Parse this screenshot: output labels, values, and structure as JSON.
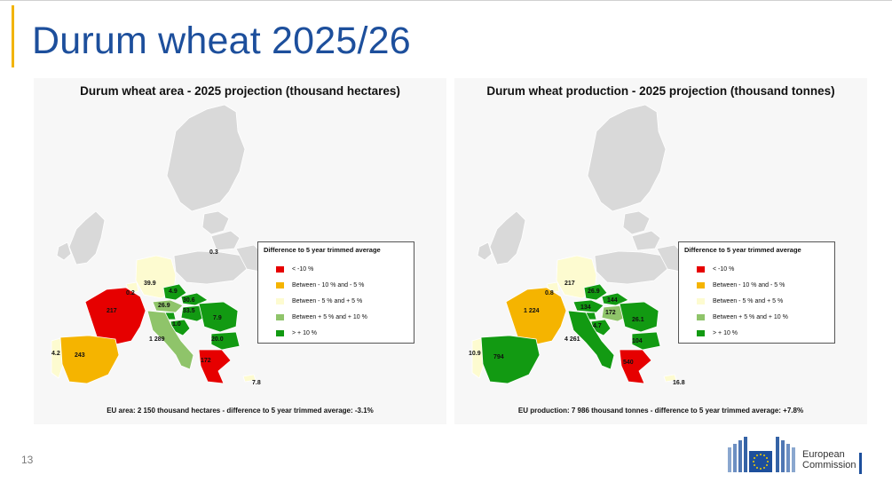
{
  "slide": {
    "title": "Durum wheat 2025/26",
    "page_number": "13"
  },
  "legend": {
    "title": "Difference to 5 year trimmed average",
    "items": [
      {
        "label": "< -10 %",
        "color": "#e60000"
      },
      {
        "label": "Between - 10 % and - 5 %",
        "color": "#f5b400"
      },
      {
        "label": "Between - 5 % and + 5 %",
        "color": "#fdfbd0"
      },
      {
        "label": "Between + 5 % and + 10 %",
        "color": "#8fc46a"
      },
      {
        "label": "> + 10 %",
        "color": "#129a12"
      }
    ]
  },
  "maps": [
    {
      "title": "Durum wheat area - 2025 projection  (thousand hectares)",
      "footnote": "EU area: 2 150 thousand hectares - difference to 5 year trimmed average: -3.1%",
      "labels": {
        "france": "217",
        "spain": "243",
        "portugal": "4.2",
        "italy": "1 289",
        "germany": "39.9",
        "belgium": "0.2",
        "poland": "0.3",
        "czech": "4.9",
        "slovakia": "30.6",
        "austria": "26.9",
        "hungary": "33.5",
        "croatia": "1.0",
        "romania": "7.9",
        "bulgaria": "20.0",
        "greece": "172",
        "cyprus": "7.8"
      },
      "colors": {
        "france": "#e60000",
        "spain": "#f5b400",
        "portugal": "#fdfbd0",
        "italy": "#8fc46a",
        "germany": "#fdfbd0",
        "belgium": "#fdfbd0",
        "czech": "#129a12",
        "slovakia": "#129a12",
        "austria": "#8fc46a",
        "hungary": "#129a12",
        "croatia": "#129a12",
        "slovenia": "#129a12",
        "romania": "#129a12",
        "bulgaria": "#129a12",
        "greece": "#e60000",
        "cyprus": "#fdfbd0"
      }
    },
    {
      "title": "Durum wheat production - 2025 projection  (thousand tonnes)",
      "footnote": "EU production: 7 986 thousand tonnes - difference to 5 year trimmed average: +7.8%",
      "labels": {
        "france": "1 224",
        "spain": "794",
        "portugal": "10.9",
        "italy": "4 261",
        "germany": "217",
        "belgium": "0.8",
        "czech": "26.9",
        "slovakia": "144",
        "austria": "134",
        "hungary": "172",
        "croatia": "4.7",
        "romania": "26.1",
        "bulgaria": "104",
        "greece": "540",
        "cyprus": "16.8"
      },
      "colors": {
        "france": "#f5b400",
        "spain": "#129a12",
        "portugal": "#fdfbd0",
        "italy": "#129a12",
        "germany": "#fdfbd0",
        "belgium": "#fdfbd0",
        "czech": "#129a12",
        "slovakia": "#129a12",
        "austria": "#129a12",
        "hungary": "#8fc46a",
        "croatia": "#129a12",
        "slovenia": "#129a12",
        "romania": "#129a12",
        "bulgaria": "#129a12",
        "greece": "#e60000",
        "cyprus": "#fdfbd0"
      }
    }
  ],
  "brand": {
    "line1": "European",
    "line2": "Commission",
    "primary_color": "#1d4f9c",
    "accent_color": "#f2b400"
  }
}
